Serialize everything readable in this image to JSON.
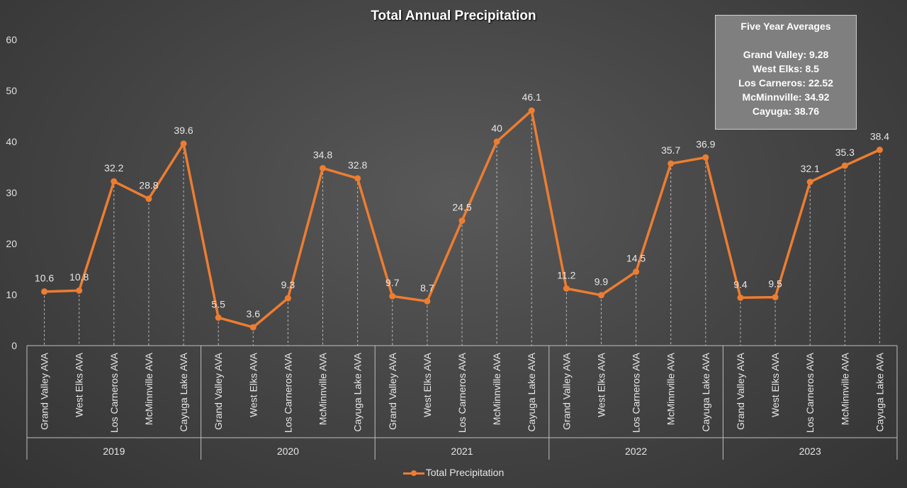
{
  "chart_data": {
    "type": "line",
    "title": "Total Annual Precipitation",
    "xlabel": "",
    "ylabel": "",
    "ylim": [
      0,
      60
    ],
    "yticks": [
      0,
      10,
      20,
      30,
      40,
      50,
      60
    ],
    "grid": false,
    "legend_position": "bottom",
    "groups": [
      {
        "label": "2019",
        "categories": [
          "Grand Valley AVA",
          "West Elks AVA",
          "Los Carneros AVA",
          "McMinnville AVA",
          "Cayuga Lake AVA"
        ]
      },
      {
        "label": "2020",
        "categories": [
          "Grand Valley AVA",
          "West Elks AVA",
          "Los Carneros AVA",
          "McMinnville AVA",
          "Cayuga Lake AVA"
        ]
      },
      {
        "label": "2021",
        "categories": [
          "Grand Valley AVA",
          "West Elks AVA",
          "Los Carneros AVA",
          "McMinnville AVA",
          "Cayuga Lake AVA"
        ]
      },
      {
        "label": "2022",
        "categories": [
          "Grand Valley AVA",
          "West Elks AVA",
          "Los Carneros AVA",
          "McMinnville AVA",
          "Cayuga Lake AVA"
        ]
      },
      {
        "label": "2023",
        "categories": [
          "Grand Valley AVA",
          "West Elks AVA",
          "Los Carneros AVA",
          "McMinnville AVA",
          "Cayuga Lake AVA"
        ]
      }
    ],
    "series": [
      {
        "name": "Total Precipitation",
        "color": "#ed7d31",
        "values": [
          10.6,
          10.8,
          32.2,
          28.8,
          39.6,
          5.5,
          3.6,
          9.3,
          34.8,
          32.8,
          9.7,
          8.7,
          24.5,
          40,
          46.1,
          11.2,
          9.9,
          14.5,
          35.7,
          36.9,
          9.4,
          9.5,
          32.1,
          35.3,
          38.4
        ],
        "data_labels": [
          "10.6",
          "10.8",
          "32.2",
          "28.8",
          "39.6",
          "5.5",
          "3.6",
          "9.3",
          "34.8",
          "32.8",
          "9.7",
          "8.7",
          "24.5",
          "40",
          "46.1",
          "11.2",
          "9.9",
          "14.5",
          "35.7",
          "36.9",
          "9.4",
          "9.5",
          "32.1",
          "35.3",
          "38.4"
        ]
      }
    ],
    "annotation": {
      "title": "Five Year Averages",
      "lines": [
        "Grand Valley: 9.28",
        "West Elks: 8.5",
        "Los Carneros: 22.52",
        "McMinnville: 34.92",
        "Cayuga: 38.76"
      ]
    }
  }
}
